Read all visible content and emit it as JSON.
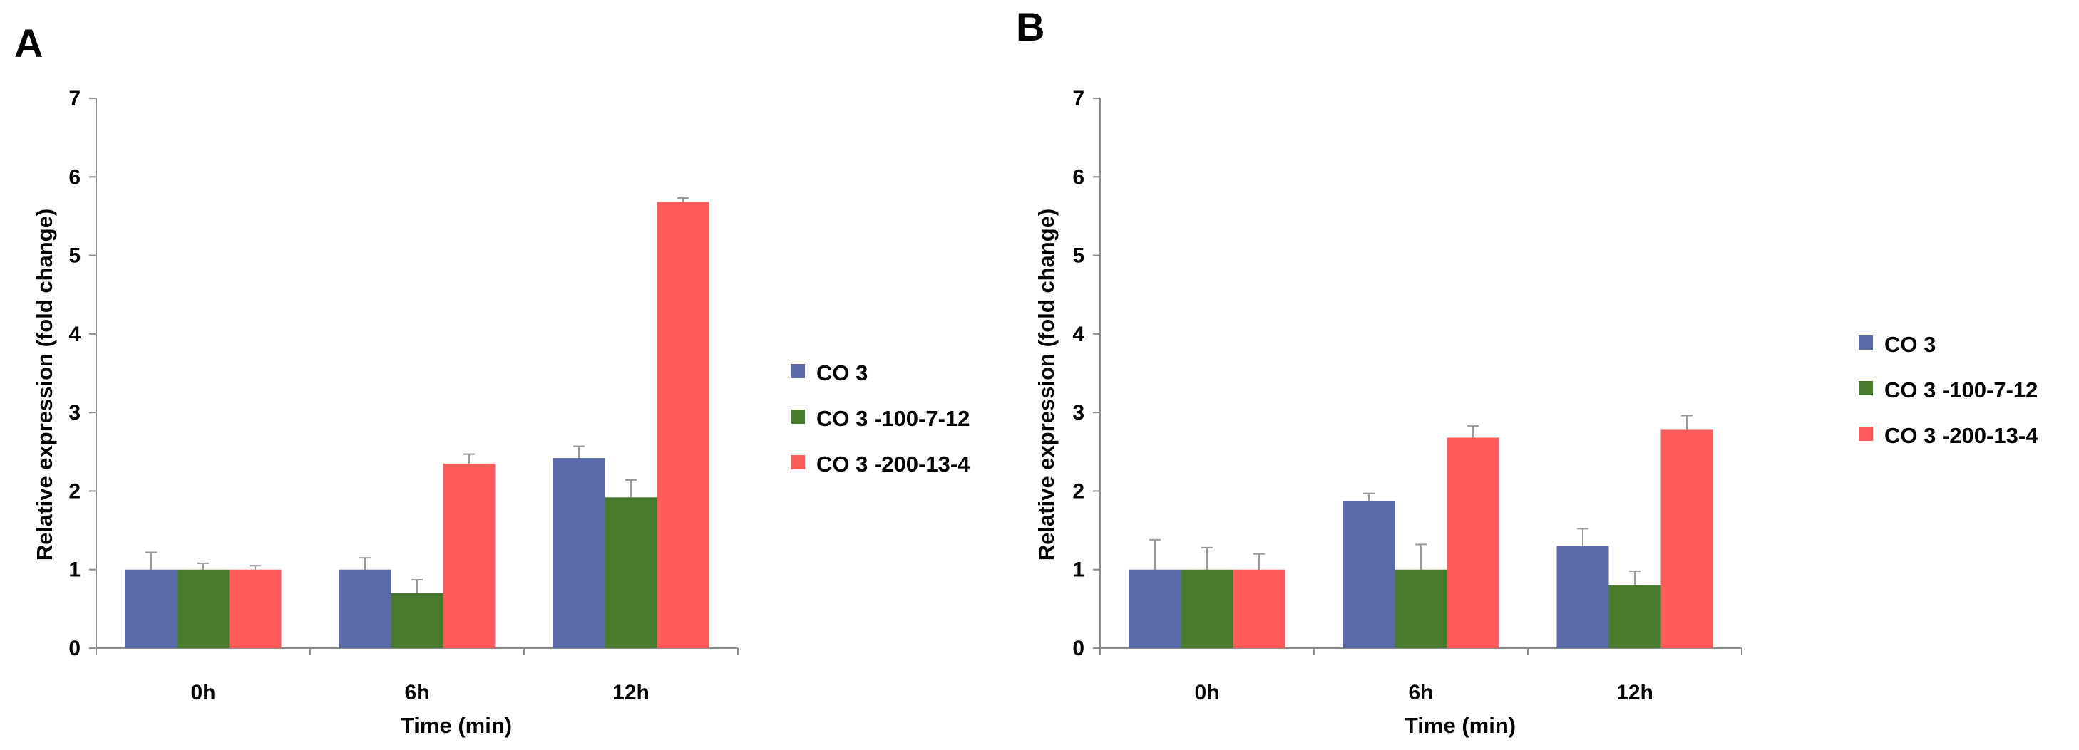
{
  "chart_data": [
    {
      "type": "bar",
      "panel_label": "A",
      "categories": [
        "0h",
        "6h",
        "12h"
      ],
      "series": [
        {
          "name": "CO 3",
          "color": "#5a69a8",
          "values": [
            1.0,
            1.0,
            2.42
          ],
          "errors": [
            0.22,
            0.15,
            0.15
          ]
        },
        {
          "name": "CO 3 -100-7-12",
          "color": "#477a2c",
          "values": [
            1.0,
            0.7,
            1.92
          ],
          "errors": [
            0.08,
            0.17,
            0.22
          ]
        },
        {
          "name": "CO 3 -200-13-4",
          "color": "#ff5b5b",
          "values": [
            1.0,
            2.35,
            5.68
          ],
          "errors": [
            0.05,
            0.12,
            0.05
          ]
        }
      ],
      "xlabel": "Time (min)",
      "ylabel": "Relative expression (fold change)",
      "ylim": [
        0,
        7
      ],
      "yticks": [
        "0",
        "1",
        "2",
        "3",
        "4",
        "5",
        "6",
        "7"
      ],
      "legend": "right"
    },
    {
      "type": "bar",
      "panel_label": "B",
      "categories": [
        "0h",
        "6h",
        "12h"
      ],
      "series": [
        {
          "name": "CO 3",
          "color": "#5a69a8",
          "values": [
            1.0,
            1.87,
            1.3
          ],
          "errors": [
            0.38,
            0.1,
            0.22
          ]
        },
        {
          "name": "CO 3 -100-7-12",
          "color": "#477a2c",
          "values": [
            1.0,
            1.0,
            0.8
          ],
          "errors": [
            0.28,
            0.32,
            0.18
          ]
        },
        {
          "name": "CO 3 -200-13-4",
          "color": "#ff5b5b",
          "values": [
            1.0,
            2.68,
            2.78
          ],
          "errors": [
            0.2,
            0.15,
            0.18
          ]
        }
      ],
      "xlabel": "Time (min)",
      "ylabel": "Relative expression (fold change)",
      "ylim": [
        0,
        7
      ],
      "yticks": [
        "0",
        "1",
        "2",
        "3",
        "4",
        "5",
        "6",
        "7"
      ],
      "legend": "right"
    }
  ]
}
